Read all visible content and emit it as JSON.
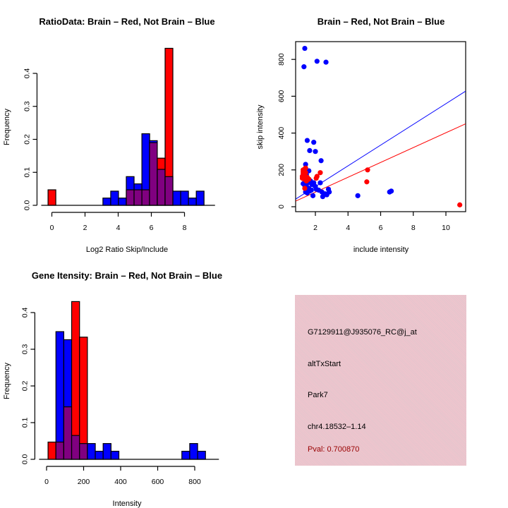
{
  "colors": {
    "brain": "#ff0000",
    "not_brain": "#0000ff",
    "overlap": "#800080",
    "pval_text": "#990000",
    "info_bg": "#e9c6cf"
  },
  "chart_data": [
    {
      "id": "ratio-hist",
      "type": "bar",
      "subtype": "overlaid-histogram",
      "title": "RatioData: Brain – Red, Not Brain – Blue",
      "xlabel": "Log2 Ratio Skip/Include",
      "ylabel": "Frequency",
      "xlim": [
        -0.3,
        9.5
      ],
      "ylim": [
        0,
        0.48
      ],
      "xticks": [
        0,
        2,
        4,
        6,
        8
      ],
      "yticks": [
        0.0,
        0.1,
        0.2,
        0.3,
        0.4
      ],
      "ytick_labels": [
        "0.0",
        "0.1",
        "0.2",
        "0.3",
        "0.4"
      ],
      "bin_width": 0.468,
      "bins_start": [
        -0.23,
        3.08,
        3.55,
        4.02,
        4.49,
        4.96,
        5.43,
        5.89,
        6.36,
        6.83,
        7.3,
        7.77,
        8.24,
        8.71
      ],
      "series": [
        {
          "name": "Brain",
          "color": "red",
          "values": [
            0.047,
            0,
            0,
            0,
            0.047,
            0.047,
            0.047,
            0.19,
            0.143,
            0.476,
            0,
            0,
            0,
            0
          ]
        },
        {
          "name": "Not Brain",
          "color": "blue",
          "values": [
            0,
            0.022,
            0.043,
            0.022,
            0.087,
            0.065,
            0.217,
            0.196,
            0.109,
            0.087,
            0.043,
            0.043,
            0.022,
            0.043
          ]
        }
      ]
    },
    {
      "id": "intensity-scatter",
      "type": "scatter",
      "title": "Brain – Red, Not Brain – Blue",
      "xlabel": "include intensity",
      "ylabel": "skip intensity",
      "xlim": [
        0.8,
        11.2
      ],
      "ylim": [
        -25,
        895
      ],
      "xticks": [
        2,
        4,
        6,
        8,
        10
      ],
      "yticks": [
        0,
        200,
        400,
        600,
        800
      ],
      "series": [
        {
          "name": "Brain",
          "color": "red",
          "points": [
            [
              1.2,
              165
            ],
            [
              1.25,
              180
            ],
            [
              1.3,
              195
            ],
            [
              1.35,
              205
            ],
            [
              1.25,
              200
            ],
            [
              1.3,
              170
            ],
            [
              1.2,
              155
            ],
            [
              1.4,
              185
            ],
            [
              1.3,
              150
            ],
            [
              1.35,
              100
            ],
            [
              1.45,
              140
            ],
            [
              1.5,
              160
            ],
            [
              1.6,
              150
            ],
            [
              1.25,
              190
            ],
            [
              1.4,
              210
            ],
            [
              2.05,
              155
            ],
            [
              2.1,
              165
            ],
            [
              2.3,
              185
            ],
            [
              5.2,
              200
            ],
            [
              5.15,
              135
            ],
            [
              10.85,
              10
            ]
          ]
        },
        {
          "name": "Not Brain",
          "color": "blue",
          "points": [
            [
              1.3,
              760
            ],
            [
              1.35,
              860
            ],
            [
              2.1,
              790
            ],
            [
              2.65,
              785
            ],
            [
              1.5,
              360
            ],
            [
              1.9,
              350
            ],
            [
              1.65,
              305
            ],
            [
              2.0,
              300
            ],
            [
              2.35,
              250
            ],
            [
              1.4,
              230
            ],
            [
              1.6,
              195
            ],
            [
              1.45,
              175
            ],
            [
              1.25,
              125
            ],
            [
              1.35,
              115
            ],
            [
              1.4,
              80
            ],
            [
              1.5,
              140
            ],
            [
              1.55,
              130
            ],
            [
              1.6,
              100
            ],
            [
              1.7,
              140
            ],
            [
              1.75,
              90
            ],
            [
              1.8,
              120
            ],
            [
              1.85,
              60
            ],
            [
              1.9,
              130
            ],
            [
              2.0,
              110
            ],
            [
              2.05,
              95
            ],
            [
              2.2,
              90
            ],
            [
              2.3,
              130
            ],
            [
              2.4,
              80
            ],
            [
              2.45,
              55
            ],
            [
              2.6,
              70
            ],
            [
              2.7,
              65
            ],
            [
              2.8,
              95
            ],
            [
              2.85,
              80
            ],
            [
              1.5,
              75
            ],
            [
              1.65,
              85
            ],
            [
              1.45,
              110
            ],
            [
              4.6,
              60
            ],
            [
              6.55,
              80
            ],
            [
              6.65,
              85
            ]
          ]
        }
      ],
      "fit_lines": [
        {
          "name": "Not Brain fit",
          "color": "blue",
          "from": [
            0.8,
            42
          ],
          "to": [
            11.2,
            627
          ]
        },
        {
          "name": "Brain fit",
          "color": "red",
          "from": [
            0.8,
            31
          ],
          "to": [
            11.2,
            450
          ]
        }
      ]
    },
    {
      "id": "gene-hist",
      "type": "bar",
      "subtype": "overlaid-histogram",
      "title": "Gene Itensity: Brain – Red, Not Brain – Blue",
      "xlabel": "Intensity",
      "ylabel": "Frequency",
      "xlim": [
        -10,
        900
      ],
      "ylim": [
        0,
        0.45
      ],
      "xticks": [
        0,
        200,
        400,
        600,
        800
      ],
      "yticks": [
        0.0,
        0.1,
        0.2,
        0.3,
        0.4
      ],
      "ytick_labels": [
        "0.0",
        "0.1",
        "0.2",
        "0.3",
        "0.4"
      ],
      "bin_width": 42.5,
      "bins_start": [
        8,
        50.5,
        93,
        135.5,
        178,
        220.5,
        263,
        305.5,
        348,
        730.5,
        773,
        815.5
      ],
      "series": [
        {
          "name": "Brain",
          "color": "red",
          "values": [
            0.047,
            0.047,
            0.143,
            0.43,
            0.333,
            0,
            0,
            0,
            0,
            0,
            0,
            0
          ]
        },
        {
          "name": "Not Brain",
          "color": "blue",
          "values": [
            0,
            0.348,
            0.326,
            0.065,
            0.043,
            0.043,
            0.022,
            0.043,
            0.022,
            0.022,
            0.043,
            0.022
          ]
        }
      ]
    }
  ],
  "info_panel": {
    "probe_id": "G7129911@J935076_RC@j_at",
    "event_type": "altTxStart",
    "gene": "Park7",
    "location": "chr4.18532–1.14",
    "pval": "Pval: 0.700870"
  }
}
